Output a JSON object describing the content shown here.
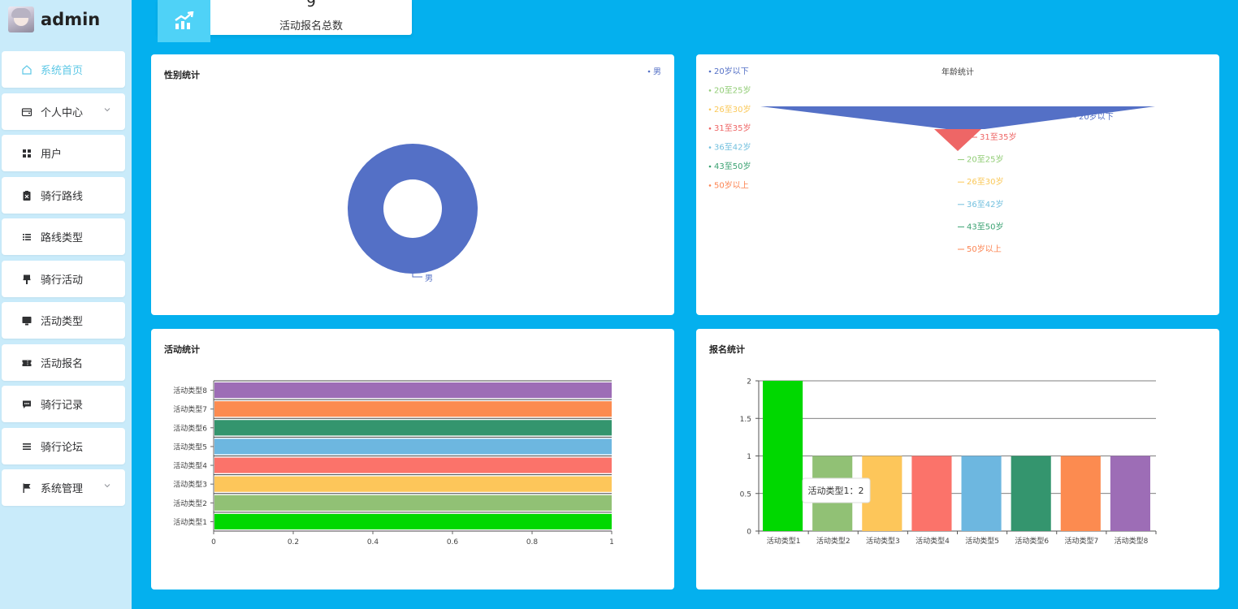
{
  "sidebar": {
    "username": "admin",
    "menu": [
      {
        "label": "系统首页",
        "icon": "home-icon",
        "active": true
      },
      {
        "label": "个人中心",
        "icon": "wallet-icon",
        "has_children": true
      },
      {
        "label": "用户",
        "icon": "grid-icon"
      },
      {
        "label": "骑行路线",
        "icon": "clipboard-icon"
      },
      {
        "label": "路线类型",
        "icon": "list-icon"
      },
      {
        "label": "骑行活动",
        "icon": "brush-icon"
      },
      {
        "label": "活动类型",
        "icon": "monitor-icon"
      },
      {
        "label": "活动报名",
        "icon": "ticket-icon"
      },
      {
        "label": "骑行记录",
        "icon": "message-icon"
      },
      {
        "label": "骑行论坛",
        "icon": "menu-icon"
      },
      {
        "label": "系统管理",
        "icon": "flag-icon",
        "has_children": true
      }
    ]
  },
  "stat_card": {
    "value": "9",
    "label": "活动报名总数",
    "icon": "chart-trend-icon"
  },
  "panels": {
    "gender": {
      "title": "性别统计"
    },
    "age": {
      "title": "年龄统计"
    },
    "activity": {
      "title": "活动统计"
    },
    "signup": {
      "title": "报名统计"
    }
  },
  "tooltip": {
    "text": "活动类型1：2"
  },
  "colors": {
    "accent": "#5ec8e6",
    "background": "#04b0ee",
    "sidebar": "#c9ebfa"
  },
  "chart_data": [
    {
      "id": "gender",
      "type": "pie",
      "variant": "donut",
      "title": "性别统计",
      "slices": [
        {
          "label": "男",
          "value": 1,
          "color": "#5470c6"
        }
      ],
      "legend": [
        "男"
      ],
      "legend_position": "top-right"
    },
    {
      "id": "age",
      "type": "funnel",
      "title": "年龄统计",
      "legend_position": "left",
      "legend": [
        {
          "label": "20岁以下",
          "color": "#5470c6"
        },
        {
          "label": "20至25岁",
          "color": "#91cc75"
        },
        {
          "label": "26至30岁",
          "color": "#fac858"
        },
        {
          "label": "31至35岁",
          "color": "#ee6666"
        },
        {
          "label": "36至42岁",
          "color": "#73c0de"
        },
        {
          "label": "43至50岁",
          "color": "#3ba272"
        },
        {
          "label": "50岁以上",
          "color": "#fc8452"
        }
      ],
      "funnel_labels": [
        {
          "label": "20岁以下",
          "color": "#5470c6"
        },
        {
          "label": "31至35岁",
          "color": "#ee6666"
        },
        {
          "label": "20至25岁",
          "color": "#91cc75"
        },
        {
          "label": "26至30岁",
          "color": "#fac858"
        },
        {
          "label": "36至42岁",
          "color": "#73c0de"
        },
        {
          "label": "43至50岁",
          "color": "#3ba272"
        },
        {
          "label": "50岁以上",
          "color": "#fc8452"
        }
      ],
      "visible_segments": [
        {
          "label": "20岁以下",
          "color": "#5470c6"
        },
        {
          "label": "31至35岁",
          "color": "#ee6666"
        }
      ]
    },
    {
      "id": "activity",
      "type": "bar",
      "orientation": "horizontal",
      "title": "活动统计",
      "categories": [
        "活动类型1",
        "活动类型2",
        "活动类型3",
        "活动类型4",
        "活动类型5",
        "活动类型6",
        "活动类型7",
        "活动类型8"
      ],
      "values": [
        1,
        1,
        1,
        1,
        1,
        1,
        1,
        1
      ],
      "colors": [
        "#00d800",
        "#91c175",
        "#fdc65a",
        "#fb736a",
        "#6db7e0",
        "#34956e",
        "#fc8b50",
        "#9d6db6"
      ],
      "xlim": [
        0,
        1
      ],
      "xticks": [
        "0",
        "0.2",
        "0.4",
        "0.6",
        "0.8",
        "1"
      ]
    },
    {
      "id": "signup",
      "type": "bar",
      "title": "报名统计",
      "categories": [
        "活动类型1",
        "活动类型2",
        "活动类型3",
        "活动类型4",
        "活动类型5",
        "活动类型6",
        "活动类型7",
        "活动类型8"
      ],
      "values": [
        2,
        1,
        1,
        1,
        1,
        1,
        1,
        1
      ],
      "colors": [
        "#00d800",
        "#91c175",
        "#fdc65a",
        "#fb736a",
        "#6db7e0",
        "#34956e",
        "#fc8b50",
        "#9d6db6"
      ],
      "ylim": [
        0,
        2
      ],
      "yticks": [
        "0",
        "0.5",
        "1",
        "1.5",
        "2"
      ],
      "grid": true
    }
  ]
}
